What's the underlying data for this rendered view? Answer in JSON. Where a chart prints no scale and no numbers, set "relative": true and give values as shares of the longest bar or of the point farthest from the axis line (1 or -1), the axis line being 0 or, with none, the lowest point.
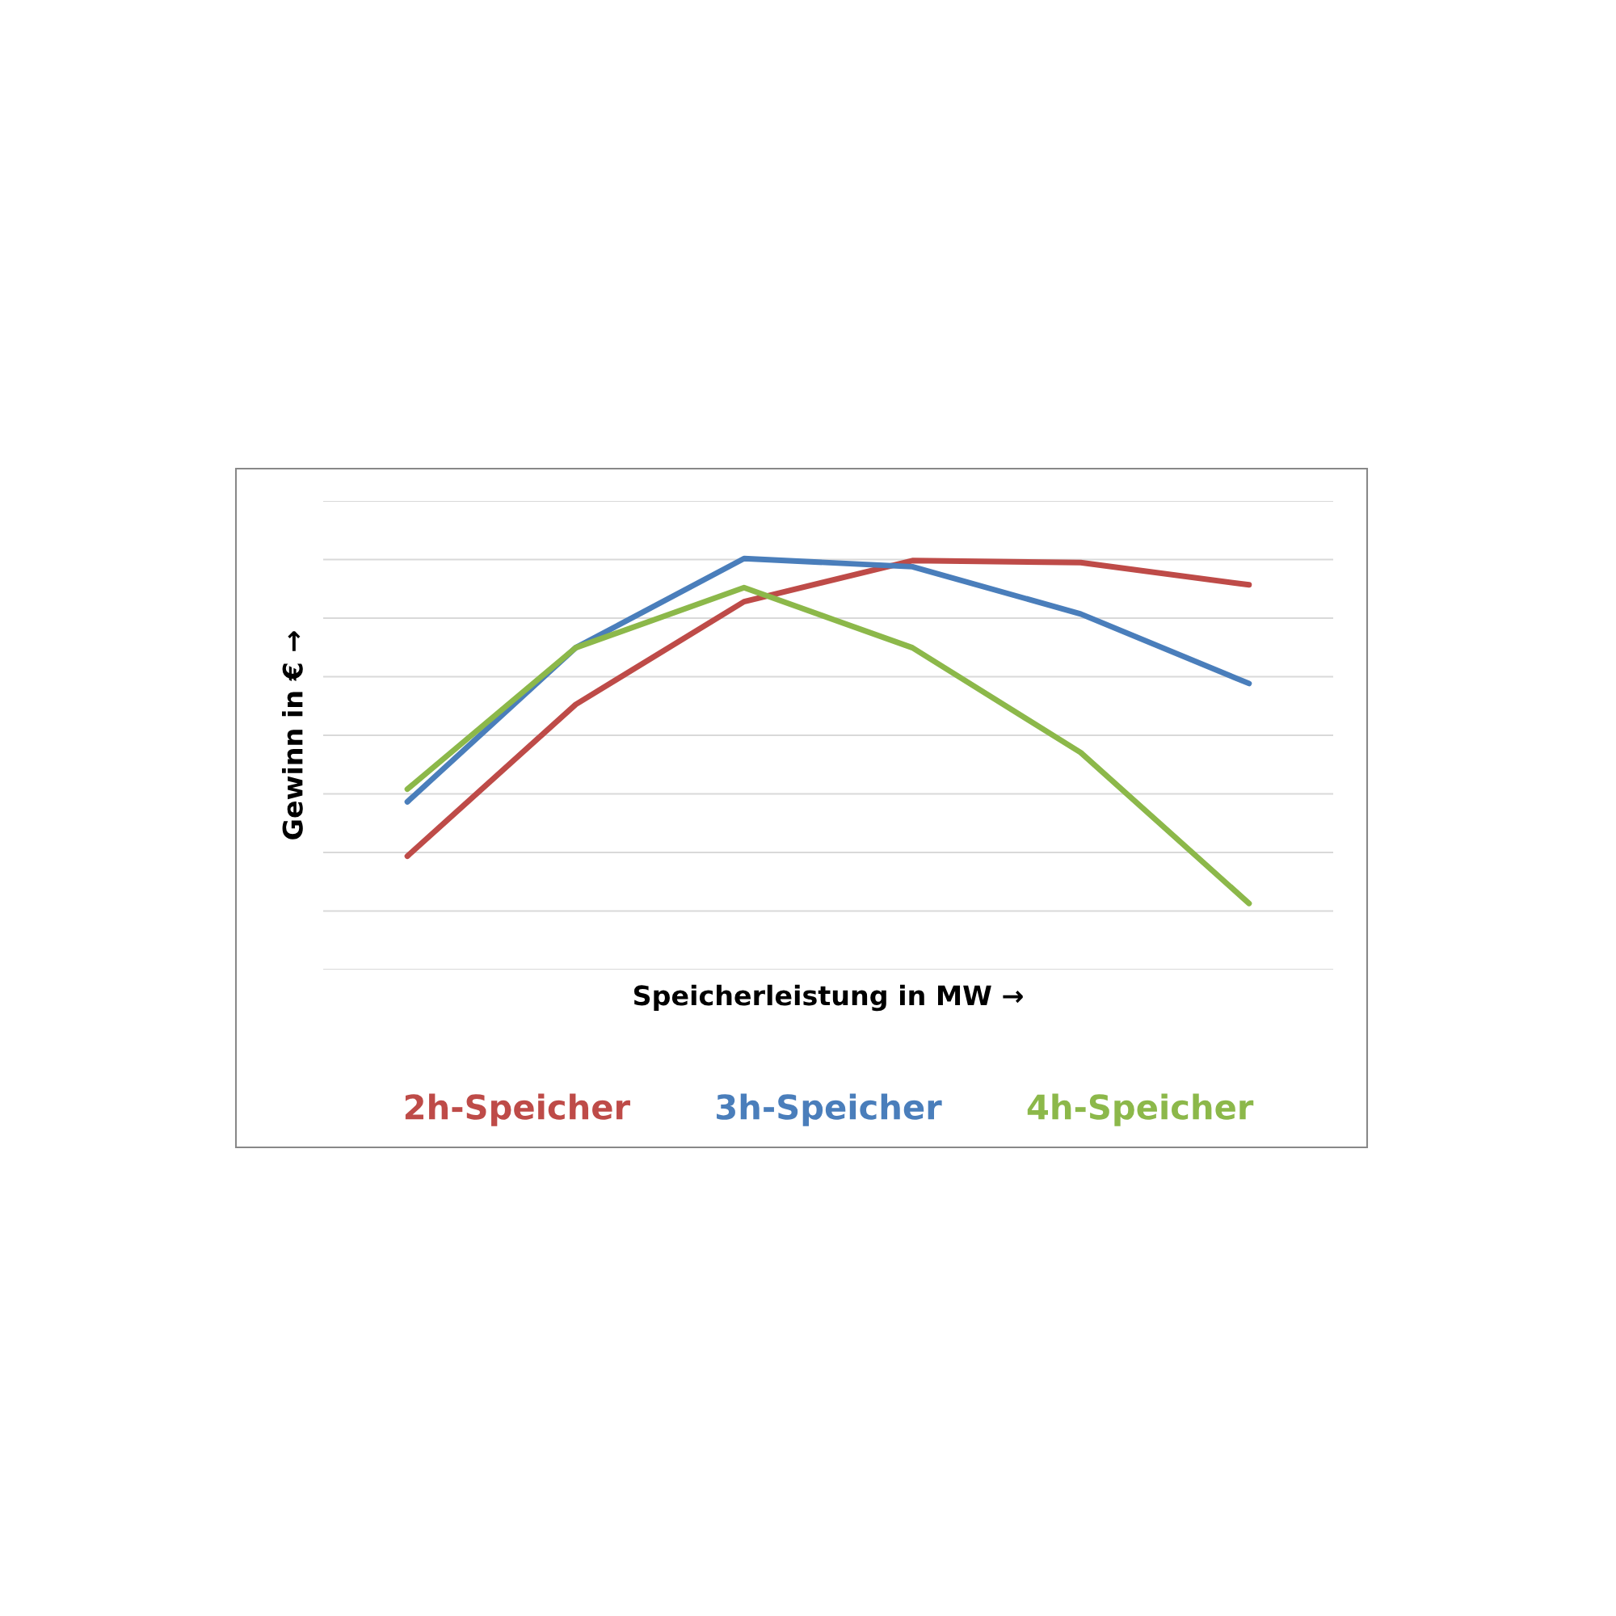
{
  "chart_data": {
    "type": "line",
    "relative": true,
    "xlabel": "Speicherleistung in MW →",
    "ylabel": "Gewinn in € →",
    "categories": [
      null,
      null,
      null,
      null,
      null,
      null
    ],
    "series": [
      {
        "name": "2h-Speicher",
        "color": "#be4b48",
        "values": [
          0.276,
          0.645,
          0.895,
          0.995,
          0.99,
          0.936
        ]
      },
      {
        "name": "3h-Speicher",
        "color": "#4a7ebb",
        "values": [
          0.408,
          0.783,
          1.0,
          0.98,
          0.865,
          0.696
        ]
      },
      {
        "name": "4h-Speicher",
        "color": "#8cb84a",
        "values": [
          0.439,
          0.783,
          0.929,
          0.783,
          0.528,
          0.161
        ]
      }
    ],
    "grid": "y",
    "legend": "bottom",
    "marker": "none",
    "line_style": "solid"
  }
}
